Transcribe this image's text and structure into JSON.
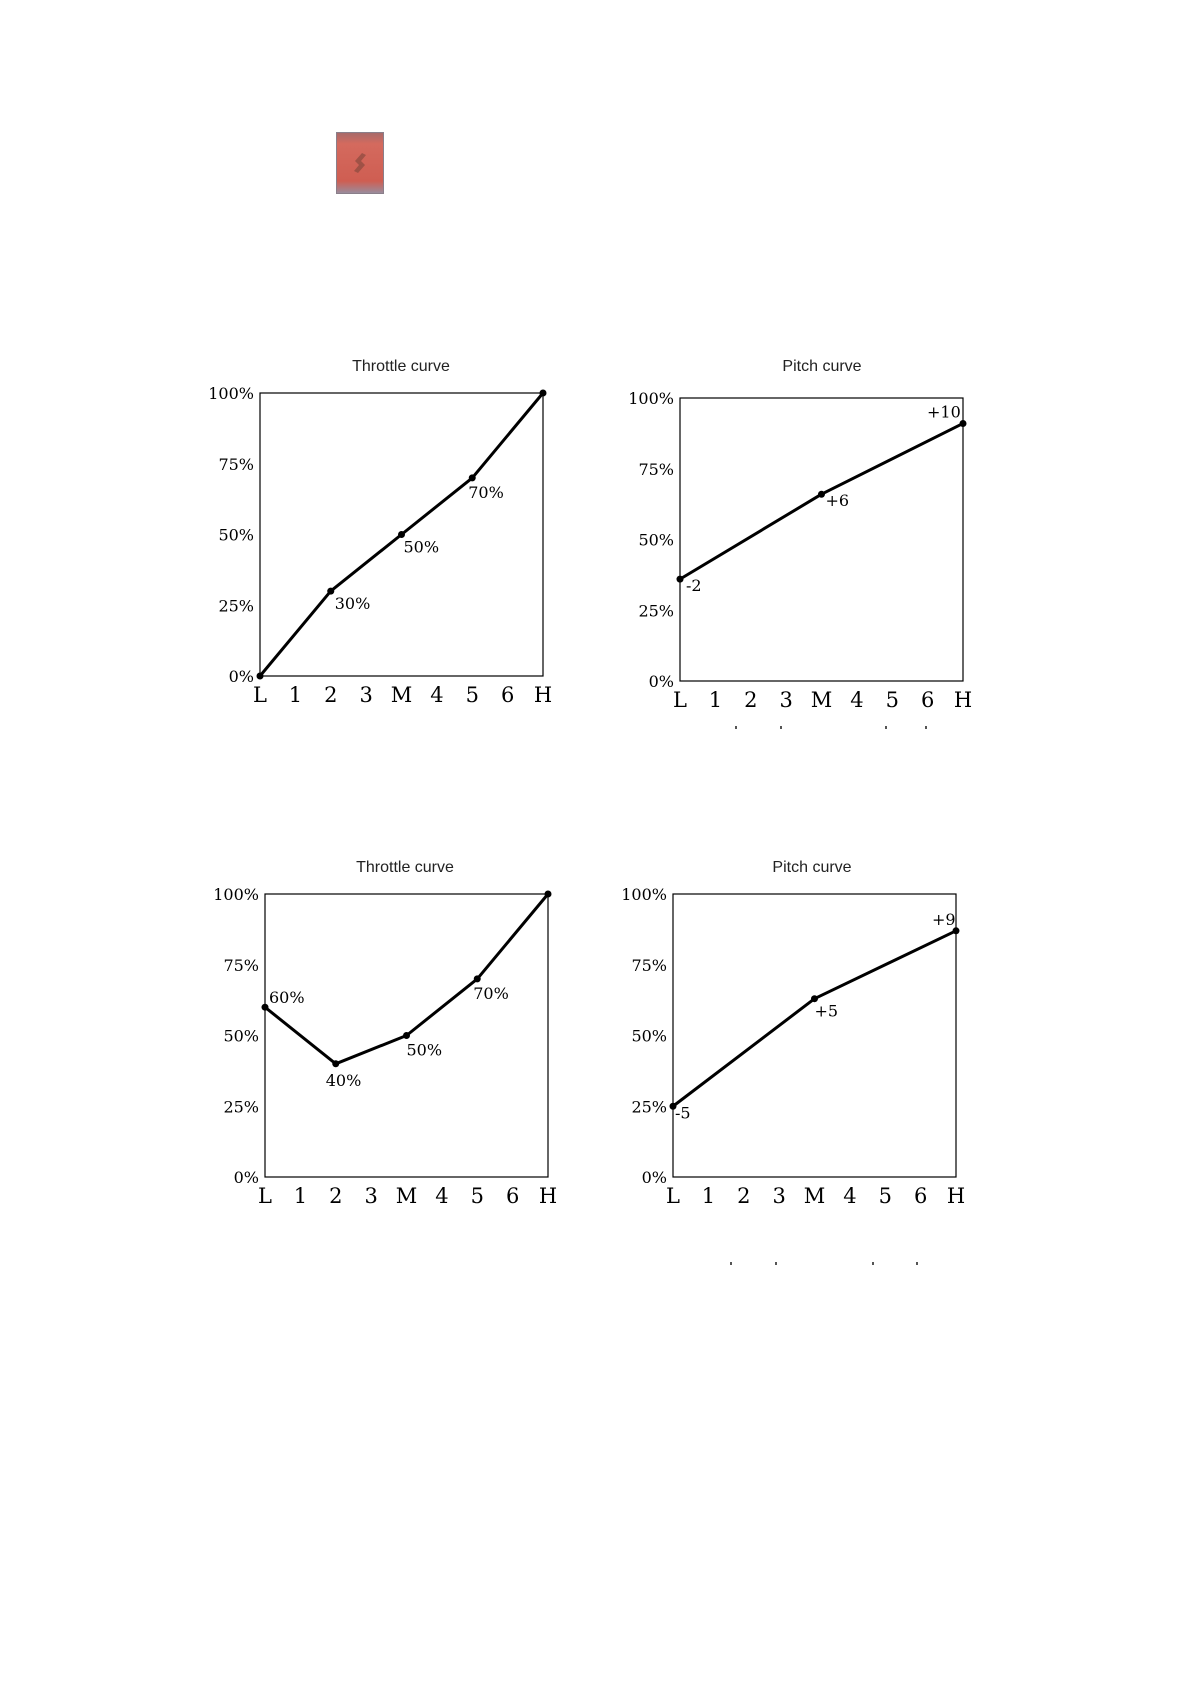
{
  "chart_data": [
    {
      "type": "line",
      "title": "Throttle curve",
      "categories": [
        "L",
        "1",
        "2",
        "3",
        "M",
        "4",
        "5",
        "6",
        "H"
      ],
      "yticks": [
        "0%",
        "25%",
        "50%",
        "75%",
        "100%"
      ],
      "ylim": [
        0,
        100
      ],
      "x": [
        "L",
        "2",
        "M",
        "5",
        "H"
      ],
      "values": [
        0,
        30,
        50,
        70,
        100
      ],
      "data_labels": [
        "",
        "30%",
        "50%",
        "70%",
        ""
      ],
      "line_color": "#000000"
    },
    {
      "type": "line",
      "title": "Pitch curve",
      "categories": [
        "L",
        "1",
        "2",
        "3",
        "M",
        "4",
        "5",
        "6",
        "H"
      ],
      "yticks": [
        "0%",
        "25%",
        "50%",
        "75%",
        "100%"
      ],
      "ylim": [
        0,
        100
      ],
      "x": [
        "L",
        "M",
        "H"
      ],
      "values": [
        36,
        66,
        91
      ],
      "data_labels": [
        "-2",
        "+6",
        "+10"
      ],
      "line_color": "#000000"
    },
    {
      "type": "line",
      "title": "Throttle curve",
      "categories": [
        "L",
        "1",
        "2",
        "3",
        "M",
        "4",
        "5",
        "6",
        "H"
      ],
      "yticks": [
        "0%",
        "25%",
        "50%",
        "75%",
        "100%"
      ],
      "ylim": [
        0,
        100
      ],
      "x": [
        "L",
        "2",
        "M",
        "5",
        "H"
      ],
      "values": [
        60,
        40,
        50,
        70,
        100
      ],
      "data_labels": [
        "60%",
        "40%",
        "50%",
        "70%",
        ""
      ],
      "line_color": "#000000"
    },
    {
      "type": "line",
      "title": "Pitch curve",
      "categories": [
        "L",
        "1",
        "2",
        "3",
        "M",
        "4",
        "5",
        "6",
        "H"
      ],
      "yticks": [
        "0%",
        "25%",
        "50%",
        "75%",
        "100%"
      ],
      "ylim": [
        0,
        100
      ],
      "x": [
        "L",
        "M",
        "H"
      ],
      "values": [
        25,
        63,
        87
      ],
      "data_labels": [
        "-5",
        "+5",
        "+9"
      ],
      "line_color": "#000000"
    }
  ]
}
